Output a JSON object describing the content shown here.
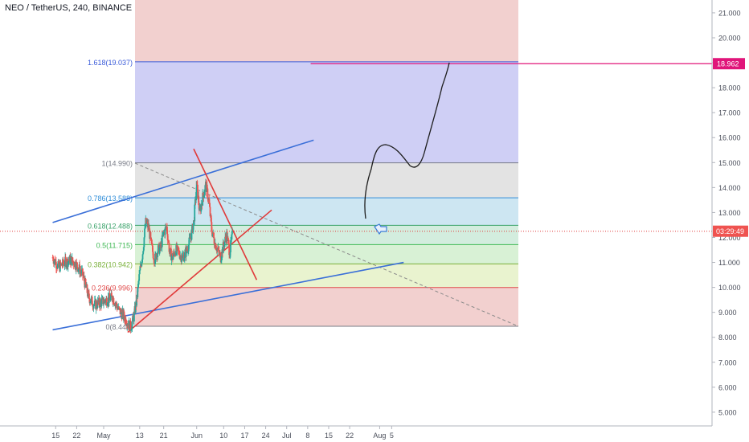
{
  "title": "NEO / TetherUS, 240, BINANCE",
  "chart_data": {
    "type": "candlestick",
    "symbol": "NEO / TetherUS",
    "interval": "240",
    "exchange": "BINANCE",
    "ylim": [
      4.5,
      21.5
    ],
    "y_ticks": [
      "21.000",
      "20.000",
      "19.000",
      "18.000",
      "17.000",
      "16.000",
      "15.000",
      "14.000",
      "13.000",
      "12.000",
      "11.000",
      "10.000",
      "9.000",
      "8.000",
      "7.000",
      "6.000",
      "5.000"
    ],
    "x_ticks": [
      {
        "label": "15",
        "day": -16
      },
      {
        "label": "22",
        "day": -9
      },
      {
        "label": "May",
        "day": 0
      },
      {
        "label": "13",
        "day": 12
      },
      {
        "label": "21",
        "day": 20
      },
      {
        "label": "Jun",
        "day": 31
      },
      {
        "label": "10",
        "day": 40
      },
      {
        "label": "17",
        "day": 47
      },
      {
        "label": "24",
        "day": 54
      },
      {
        "label": "Jul",
        "day": 61
      },
      {
        "label": "8",
        "day": 68
      },
      {
        "label": "15",
        "day": 75
      },
      {
        "label": "22",
        "day": 82
      },
      {
        "label": "Aug",
        "day": 92
      },
      {
        "label": "5",
        "day": 96
      }
    ],
    "price_path": [
      [
        -17,
        11.2
      ],
      [
        -15,
        10.8
      ],
      [
        -13,
        11.0
      ],
      [
        -11,
        11.1
      ],
      [
        -9,
        10.9
      ],
      [
        -7,
        10.5
      ],
      [
        -5,
        9.6
      ],
      [
        -3,
        9.3
      ],
      [
        -1,
        9.4
      ],
      [
        1,
        9.5
      ],
      [
        3,
        9.6
      ],
      [
        5,
        9.1
      ],
      [
        7,
        8.8
      ],
      [
        9,
        8.4
      ],
      [
        10,
        8.8
      ],
      [
        11,
        9.5
      ],
      [
        12,
        10.6
      ],
      [
        13,
        11.4
      ],
      [
        14,
        12.6
      ],
      [
        15,
        12.4
      ],
      [
        16,
        11.6
      ],
      [
        17,
        11.1
      ],
      [
        18,
        11.5
      ],
      [
        19,
        11.6
      ],
      [
        20,
        12.2
      ],
      [
        21,
        12.4
      ],
      [
        22,
        11.4
      ],
      [
        23,
        11.2
      ],
      [
        24,
        11.5
      ],
      [
        25,
        11.4
      ],
      [
        26,
        11.2
      ],
      [
        27,
        11.3
      ],
      [
        28,
        11.6
      ],
      [
        29,
        12.0
      ],
      [
        30,
        12.6
      ],
      [
        31,
        14.1
      ],
      [
        32,
        13.0
      ],
      [
        33,
        13.6
      ],
      [
        34,
        14.1
      ],
      [
        35,
        13.5
      ],
      [
        36,
        12.3
      ],
      [
        37,
        11.8
      ],
      [
        38,
        11.5
      ],
      [
        39,
        11.2
      ],
      [
        40,
        11.7
      ],
      [
        41,
        12.1
      ],
      [
        42,
        11.4
      ],
      [
        43,
        12.2
      ]
    ],
    "current_price": "03:29:49",
    "target_price_label": "18.962",
    "fibonacci": {
      "levels": [
        {
          "ratio": "1.618",
          "price": 19.037,
          "label": "1.618(19.037)",
          "color": "#3a5bd9",
          "fill": "#cfcff5"
        },
        {
          "ratio": "1",
          "price": 14.99,
          "label": "1(14.990)",
          "color": "#787b86",
          "fill": "#e3e3e3"
        },
        {
          "ratio": "0.786",
          "price": 13.588,
          "label": "0.786(13.588)",
          "color": "#2f8dd8",
          "fill": "#cde6f2"
        },
        {
          "ratio": "0.618",
          "price": 12.488,
          "label": "0.618(12.488)",
          "color": "#3aa26a",
          "fill": "#d3edde"
        },
        {
          "ratio": "0.5",
          "price": 11.715,
          "label": "0.5(11.715)",
          "color": "#3fb854",
          "fill": "#d8f1d5"
        },
        {
          "ratio": "0.382",
          "price": 10.942,
          "label": "0.382(10.942)",
          "color": "#7ab03a",
          "fill": "#e9f3cf"
        },
        {
          "ratio": "0.236",
          "price": 9.996,
          "label": "0.236(9.996)",
          "color": "#e04a4a",
          "fill": "#f2d0cf"
        },
        {
          "ratio": "0",
          "price": 8.441,
          "label": "0(8.441)",
          "color": "#787b86",
          "fill": "#f2d0cf"
        }
      ]
    },
    "trendlines": [
      {
        "name": "upper-channel",
        "color": "#3a6fd8",
        "from": [
          -17,
          12.6
        ],
        "to": [
          70,
          15.9
        ]
      },
      {
        "name": "lower-channel",
        "color": "#3a6fd8",
        "from": [
          -17,
          8.3
        ],
        "to": [
          100,
          11.0
        ]
      },
      {
        "name": "rising-support",
        "color": "#e03a3a",
        "from": [
          8,
          8.2
        ],
        "to": [
          56,
          13.1
        ]
      },
      {
        "name": "falling-resistance",
        "color": "#e03a3a",
        "from": [
          30,
          15.55
        ],
        "to": [
          51,
          10.3
        ]
      }
    ],
    "target_line": {
      "price": 18.962,
      "from_day": 69,
      "color": "#e0157a"
    },
    "grid": false,
    "legend": "none"
  }
}
